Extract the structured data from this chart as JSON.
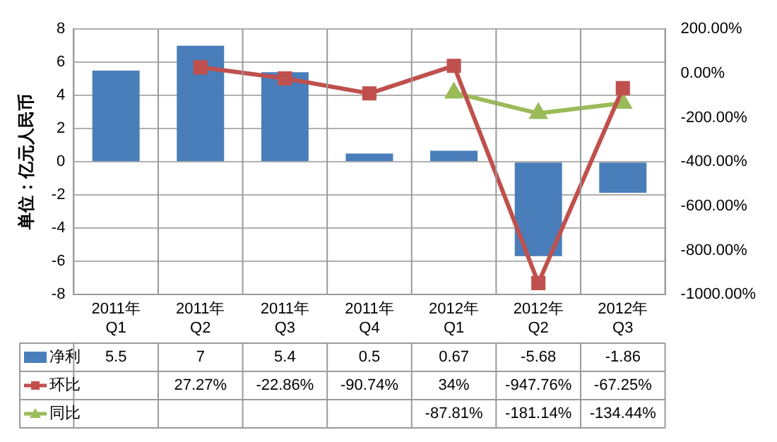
{
  "chart_data": {
    "type": "bar",
    "ylabel": "单位：亿元人民币",
    "categories": [
      "2011年\nQ1",
      "2011年\nQ2",
      "2011年\nQ3",
      "2011年\nQ4",
      "2012年\nQ1",
      "2012年\nQ2",
      "2012年\nQ3"
    ],
    "series": [
      {
        "name": "净利",
        "color": "#4a7ebb",
        "values": [
          5.5,
          7,
          5.4,
          0.5,
          0.67,
          -5.68,
          -1.86
        ],
        "value_labels": [
          "5.5",
          "7",
          "5.4",
          "0.5",
          "0.67",
          "-5.68",
          "-1.86"
        ]
      },
      {
        "name": "环比",
        "type": "line",
        "axis": "y2",
        "color": "#c0504d",
        "marker": "square",
        "values": [
          null,
          27.27,
          -22.86,
          -90.74,
          34,
          -947.76,
          -67.25
        ],
        "value_labels": [
          null,
          "27.27%",
          "-22.86%",
          "-90.74%",
          "34%",
          "-947.76%",
          "-67.25%"
        ]
      },
      {
        "name": "同比",
        "type": "line",
        "axis": "y2",
        "color": "#9bbb59",
        "marker": "triangle",
        "values": [
          null,
          null,
          null,
          null,
          -87.81,
          -181.14,
          -134.44
        ],
        "value_labels": [
          null,
          null,
          null,
          null,
          "-87.81%",
          "-181.14%",
          "-134.44%"
        ]
      }
    ],
    "ylim": [
      -8,
      8
    ],
    "yticks": [
      -8,
      -6,
      -4,
      -2,
      0,
      2,
      4,
      6,
      8
    ],
    "y2lim": [
      -1000,
      200
    ],
    "y2ticks": [
      {
        "value": -1000,
        "label": "-1000.00%"
      },
      {
        "value": -800,
        "label": "-800.00%"
      },
      {
        "value": -600,
        "label": "-600.00%"
      },
      {
        "value": -400,
        "label": "-400.00%"
      },
      {
        "value": -200,
        "label": "-200.00%"
      },
      {
        "value": 0,
        "label": "0.00%"
      },
      {
        "value": 200,
        "label": "200.00%"
      }
    ],
    "grid": "y",
    "legend": "bottom"
  }
}
